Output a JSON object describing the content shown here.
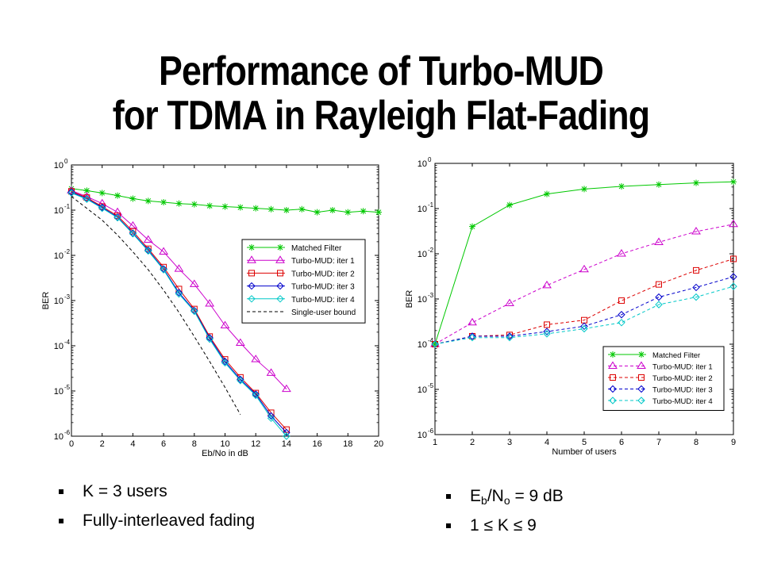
{
  "title": {
    "line1": "Performance of Turbo-MUD",
    "line2": "for TDMA in Rayleigh Flat-Fading"
  },
  "bullets_left": [
    "K = 3 users",
    "Fully-interleaved fading"
  ],
  "bullets_right": {
    "ebno_pre": "E",
    "ebno_sub1": "b",
    "ebno_mid": "/N",
    "ebno_sub2": "o",
    "ebno_post": " = 9 dB",
    "range": "1 ≤ K ≤ 9"
  },
  "chart_data": [
    {
      "type": "line",
      "xlabel": "Eb/No in dB",
      "ylabel": "BER",
      "xlim": [
        0,
        20
      ],
      "ylim": [
        1e-06,
        1
      ],
      "yscale": "log",
      "xticks": [
        0,
        2,
        4,
        6,
        8,
        10,
        12,
        14,
        16,
        18,
        20
      ],
      "yticks": [
        1e-06,
        1e-05,
        0.0001,
        0.001,
        0.01,
        0.1,
        1
      ],
      "ytick_labels": [
        [
          "10",
          "-6"
        ],
        [
          "10",
          "-5"
        ],
        [
          "10",
          "-4"
        ],
        [
          "10",
          "-3"
        ],
        [
          "10",
          "-2"
        ],
        [
          "10",
          "-1"
        ],
        [
          "10",
          "0"
        ]
      ],
      "grid": false,
      "legend_position": "right-middle",
      "series": [
        {
          "name": "Matched Filter",
          "color": "#00c800",
          "marker": "star",
          "dash": "",
          "x": [
            0,
            1,
            2,
            3,
            4,
            5,
            6,
            7,
            8,
            9,
            10,
            11,
            12,
            13,
            14,
            15,
            16,
            17,
            18,
            19,
            20
          ],
          "y": [
            0.3,
            0.27,
            0.24,
            0.21,
            0.18,
            0.16,
            0.15,
            0.14,
            0.135,
            0.125,
            0.12,
            0.115,
            0.11,
            0.105,
            0.1,
            0.105,
            0.09,
            0.1,
            0.09,
            0.095,
            0.09
          ]
        },
        {
          "name": "Turbo-MUD: iter 1",
          "color": "#cc00cc",
          "marker": "triangle",
          "dash": "",
          "x": [
            0,
            1,
            2,
            3,
            4,
            5,
            6,
            7,
            8,
            9,
            10,
            11,
            12,
            13,
            14
          ],
          "y": [
            0.27,
            0.2,
            0.14,
            0.09,
            0.045,
            0.022,
            0.012,
            0.005,
            0.0023,
            0.00085,
            0.00028,
            0.000115,
            5e-05,
            2.5e-05,
            1.1e-05
          ]
        },
        {
          "name": "Turbo-MUD: iter 2",
          "color": "#dd0000",
          "marker": "square",
          "dash": "",
          "x": [
            0,
            1,
            2,
            3,
            4,
            5,
            6,
            7,
            8,
            9,
            10,
            11,
            12,
            13,
            14
          ],
          "y": [
            0.26,
            0.19,
            0.12,
            0.075,
            0.034,
            0.014,
            0.0055,
            0.0018,
            0.00065,
            0.00016,
            5e-05,
            2e-05,
            9e-06,
            3.3e-06,
            1.4e-06
          ]
        },
        {
          "name": "Turbo-MUD: iter 3",
          "color": "#0000cc",
          "marker": "diamond",
          "dash": "",
          "x": [
            0,
            1,
            2,
            3,
            4,
            5,
            6,
            7,
            8,
            9,
            10,
            11,
            12,
            13,
            14
          ],
          "y": [
            0.25,
            0.18,
            0.115,
            0.07,
            0.031,
            0.013,
            0.005,
            0.0015,
            0.0006,
            0.00015,
            4.5e-05,
            1.8e-05,
            8.5e-06,
            2.8e-06,
            1.2e-06
          ]
        },
        {
          "name": "Turbo-MUD: iter 4",
          "color": "#00c8c8",
          "marker": "diamond",
          "dash": "",
          "x": [
            0,
            1,
            2,
            3,
            4,
            5,
            6,
            7,
            8,
            9,
            10,
            11,
            12,
            13,
            14
          ],
          "y": [
            0.24,
            0.175,
            0.11,
            0.068,
            0.03,
            0.0125,
            0.0048,
            0.0014,
            0.00058,
            0.00014,
            4.2e-05,
            1.7e-05,
            8e-06,
            2.5e-06,
            1e-06
          ]
        },
        {
          "name": "Single-user bound",
          "color": "#000000",
          "marker": "none",
          "dash": "4,3",
          "x": [
            0,
            1,
            2,
            3,
            4,
            5,
            6,
            7,
            8,
            9,
            10,
            11
          ],
          "y": [
            0.2,
            0.11,
            0.06,
            0.028,
            0.012,
            0.0048,
            0.0017,
            0.00055,
            0.00016,
            4.5e-05,
            1.2e-05,
            3e-06
          ]
        }
      ]
    },
    {
      "type": "line",
      "xlabel": "Number of users",
      "ylabel": "BER",
      "xlim": [
        1,
        9
      ],
      "ylim": [
        1e-06,
        1
      ],
      "yscale": "log",
      "xticks": [
        1,
        2,
        3,
        4,
        5,
        6,
        7,
        8,
        9
      ],
      "yticks": [
        1e-06,
        1e-05,
        0.0001,
        0.001,
        0.01,
        0.1,
        1
      ],
      "ytick_labels": [
        [
          "10",
          "-6"
        ],
        [
          "10",
          "-5"
        ],
        [
          "10",
          "-4"
        ],
        [
          "10",
          "-3"
        ],
        [
          "10",
          "-2"
        ],
        [
          "10",
          "-1"
        ],
        [
          "10",
          "0"
        ]
      ],
      "grid": false,
      "legend_position": "bottom-right",
      "series": [
        {
          "name": "Matched Filter",
          "color": "#00c800",
          "marker": "star",
          "dash": "",
          "x": [
            1,
            2,
            3,
            4,
            5,
            6,
            7,
            8,
            9
          ],
          "y": [
            0.0001,
            0.04,
            0.12,
            0.21,
            0.27,
            0.31,
            0.34,
            0.37,
            0.39
          ]
        },
        {
          "name": "Turbo-MUD: iter 1",
          "color": "#cc00cc",
          "marker": "triangle",
          "dash": "4,3",
          "x": [
            1,
            2,
            3,
            4,
            5,
            6,
            7,
            8,
            9
          ],
          "y": [
            0.0001,
            0.0003,
            0.0008,
            0.002,
            0.0045,
            0.01,
            0.018,
            0.031,
            0.045
          ]
        },
        {
          "name": "Turbo-MUD: iter 2",
          "color": "#dd0000",
          "marker": "square",
          "dash": "4,3",
          "x": [
            1,
            2,
            3,
            4,
            5,
            6,
            7,
            8,
            9
          ],
          "y": [
            0.0001,
            0.00015,
            0.00016,
            0.00027,
            0.00034,
            0.00092,
            0.0021,
            0.0043,
            0.0077
          ]
        },
        {
          "name": "Turbo-MUD: iter 3",
          "color": "#0000cc",
          "marker": "diamond",
          "dash": "4,3",
          "x": [
            1,
            2,
            3,
            4,
            5,
            6,
            7,
            8,
            9
          ],
          "y": [
            0.0001,
            0.00015,
            0.00015,
            0.00019,
            0.00025,
            0.00045,
            0.0011,
            0.0018,
            0.0031
          ]
        },
        {
          "name": "Turbo-MUD: iter 4",
          "color": "#00c8c8",
          "marker": "diamond",
          "dash": "4,3",
          "x": [
            1,
            2,
            3,
            4,
            5,
            6,
            7,
            8,
            9
          ],
          "y": [
            0.0001,
            0.00014,
            0.00014,
            0.00017,
            0.00022,
            0.0003,
            0.00075,
            0.0011,
            0.0019
          ]
        }
      ]
    }
  ]
}
